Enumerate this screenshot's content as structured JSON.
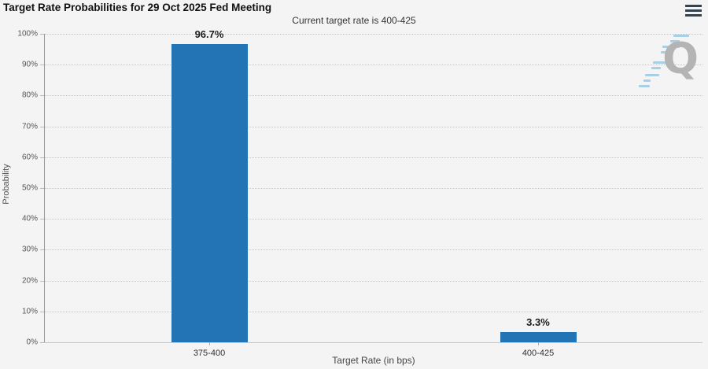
{
  "header": {
    "title": "Target Rate Probabilities for 29 Oct 2025 Fed Meeting",
    "menu_icon": "hamburger-icon"
  },
  "chart_data": {
    "type": "bar",
    "title": "Target Rate Probabilities for 29 Oct 2025 Fed Meeting",
    "subtitle": "Current target rate is 400-425",
    "categories": [
      "375-400",
      "400-425"
    ],
    "values": [
      96.7,
      3.3
    ],
    "data_labels": [
      "96.7%",
      "3.3%"
    ],
    "xlabel": "Target Rate (in bps)",
    "ylabel": "Probability",
    "ylim": [
      0,
      100
    ],
    "ytick_step": 10,
    "ytick_labels": [
      "0%",
      "10%",
      "20%",
      "30%",
      "40%",
      "50%",
      "60%",
      "70%",
      "80%",
      "90%",
      "100%"
    ],
    "grid": "dotted horizontal gridlines",
    "legend": "none",
    "bar_color": "#2274b5",
    "background_color": "#f4f4f5",
    "watermark_letter": "Q",
    "watermark_color": "#b4b4b4",
    "watermark_stripe_color": "#a7cfe6"
  }
}
